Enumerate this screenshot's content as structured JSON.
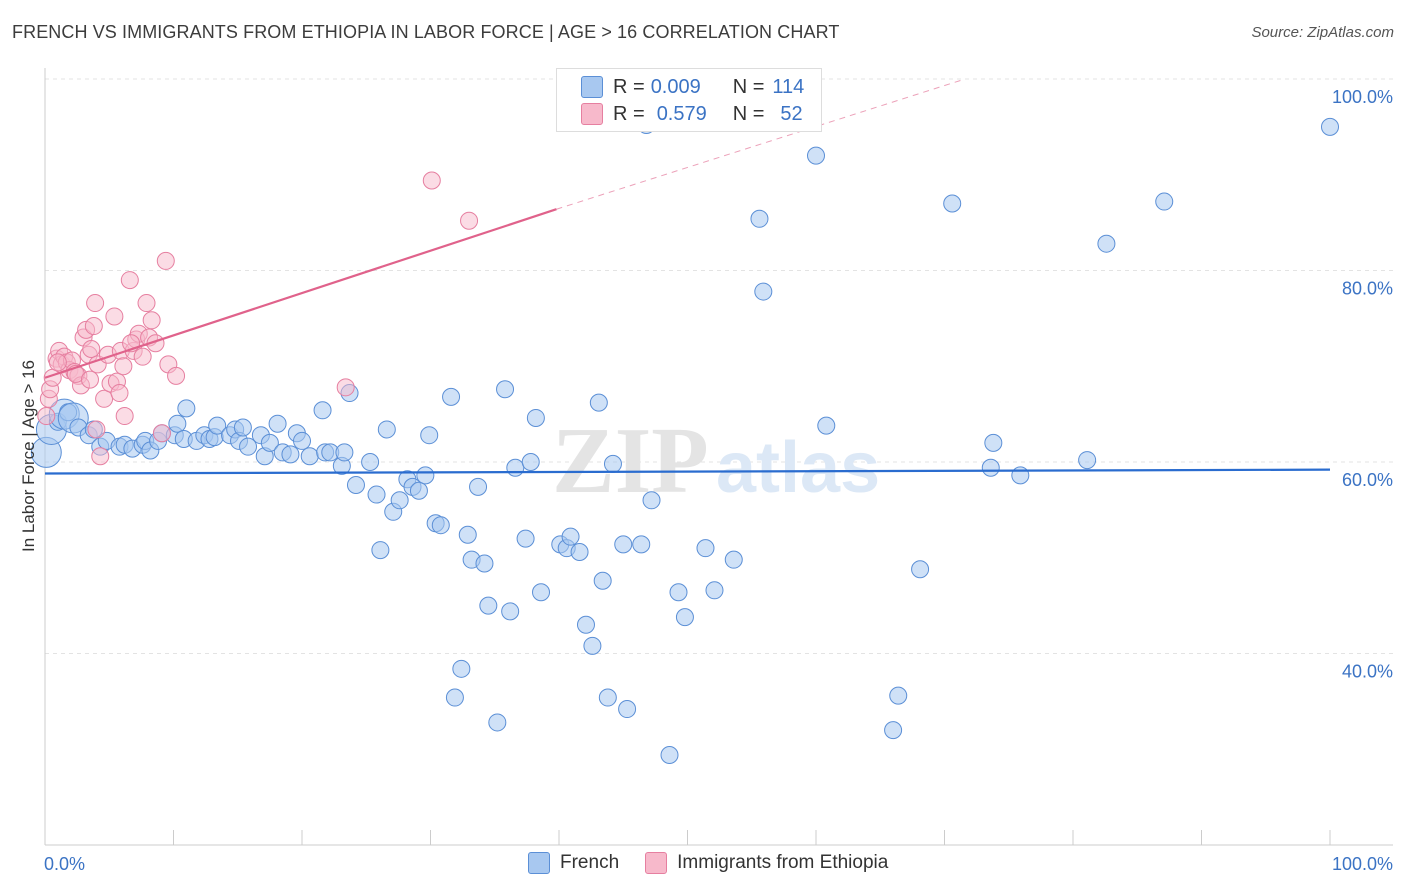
{
  "header": {
    "title": "FRENCH VS IMMIGRANTS FROM ETHIOPIA IN LABOR FORCE | AGE > 16 CORRELATION CHART",
    "source": "Source: ZipAtlas.com"
  },
  "watermark": {
    "zip": "ZIP",
    "atlas": "atlas"
  },
  "legend_top": {
    "french": {
      "r_label": "R =",
      "r_value": "0.009",
      "n_label": "N =",
      "n_value": "114"
    },
    "ethiopia": {
      "r_label": "R =",
      "r_value": "0.579",
      "n_label": "N =",
      "n_value": "52"
    }
  },
  "legend_bottom": {
    "french": "French",
    "ethiopia": "Immigrants from Ethiopia"
  },
  "colors": {
    "french_fill": "#a8c8f0",
    "french_stroke": "#5b8fd6",
    "french_line": "#2a6ccf",
    "ethiopia_fill": "#f7b9cb",
    "ethiopia_stroke": "#e67fa0",
    "ethiopia_line": "#e0628b",
    "tick_text": "#3b73c4",
    "grid": "#e3e3e3"
  },
  "chart_data": {
    "type": "scatter",
    "title": "FRENCH VS IMMIGRANTS FROM ETHIOPIA IN LABOR FORCE | AGE > 16 CORRELATION CHART",
    "xlabel": "",
    "ylabel": "In Labor Force | Age > 16",
    "xlim": [
      0,
      100
    ],
    "ylim": [
      20,
      102
    ],
    "x_tick_labels": [
      "0.0%",
      "100.0%"
    ],
    "y_ticks": [
      40,
      60,
      80,
      100
    ],
    "y_tick_labels": [
      "40.0%",
      "60.0%",
      "80.0%",
      "100.0%"
    ],
    "legend_position": "top-center",
    "series": [
      {
        "name": "French",
        "r": 0.009,
        "n": 114,
        "trend": {
          "x0": 0,
          "y0": 58.8,
          "x1": 100,
          "y1": 59.2
        },
        "points": [
          [
            0.1,
            61.0
          ],
          [
            0.5,
            63.4
          ],
          [
            1.0,
            64.2
          ],
          [
            1.5,
            65.0
          ],
          [
            1.8,
            65.2
          ],
          [
            2.2,
            64.6
          ],
          [
            2.6,
            63.6
          ],
          [
            3.4,
            62.8
          ],
          [
            3.8,
            63.4
          ],
          [
            4.3,
            61.6
          ],
          [
            4.8,
            62.2
          ],
          [
            5.8,
            61.6
          ],
          [
            6.2,
            61.8
          ],
          [
            6.8,
            61.4
          ],
          [
            7.6,
            61.8
          ],
          [
            7.8,
            62.2
          ],
          [
            8.2,
            61.2
          ],
          [
            8.8,
            62.2
          ],
          [
            9.1,
            63.0
          ],
          [
            10.1,
            62.8
          ],
          [
            10.3,
            64.0
          ],
          [
            10.8,
            62.4
          ],
          [
            11.0,
            65.6
          ],
          [
            11.8,
            62.2
          ],
          [
            12.4,
            62.8
          ],
          [
            12.8,
            62.4
          ],
          [
            13.2,
            62.6
          ],
          [
            13.4,
            63.8
          ],
          [
            14.4,
            62.8
          ],
          [
            14.8,
            63.4
          ],
          [
            15.1,
            62.2
          ],
          [
            15.4,
            63.6
          ],
          [
            15.8,
            61.6
          ],
          [
            16.8,
            62.8
          ],
          [
            17.1,
            60.6
          ],
          [
            17.5,
            62.0
          ],
          [
            18.1,
            64.0
          ],
          [
            18.5,
            61.0
          ],
          [
            19.1,
            60.8
          ],
          [
            19.6,
            63.0
          ],
          [
            20.0,
            62.2
          ],
          [
            20.6,
            60.6
          ],
          [
            21.6,
            65.4
          ],
          [
            21.8,
            61.0
          ],
          [
            22.2,
            61.0
          ],
          [
            23.1,
            59.6
          ],
          [
            23.3,
            61.0
          ],
          [
            23.7,
            67.2
          ],
          [
            24.2,
            57.6
          ],
          [
            25.3,
            60.0
          ],
          [
            25.8,
            56.6
          ],
          [
            26.1,
            50.8
          ],
          [
            26.6,
            63.4
          ],
          [
            27.1,
            54.8
          ],
          [
            27.6,
            56.0
          ],
          [
            28.2,
            58.2
          ],
          [
            28.6,
            57.4
          ],
          [
            29.1,
            57.0
          ],
          [
            29.6,
            58.6
          ],
          [
            29.9,
            62.8
          ],
          [
            30.4,
            53.6
          ],
          [
            30.8,
            53.4
          ],
          [
            31.6,
            66.8
          ],
          [
            31.9,
            35.4
          ],
          [
            32.4,
            38.4
          ],
          [
            32.9,
            52.4
          ],
          [
            33.2,
            49.8
          ],
          [
            33.7,
            57.4
          ],
          [
            34.2,
            49.4
          ],
          [
            34.5,
            45.0
          ],
          [
            35.2,
            32.8
          ],
          [
            35.8,
            67.6
          ],
          [
            36.2,
            44.4
          ],
          [
            36.6,
            59.4
          ],
          [
            37.4,
            52.0
          ],
          [
            37.8,
            60.0
          ],
          [
            38.2,
            64.6
          ],
          [
            38.6,
            46.4
          ],
          [
            40.1,
            51.4
          ],
          [
            40.6,
            51.0
          ],
          [
            40.9,
            52.2
          ],
          [
            41.6,
            50.6
          ],
          [
            42.1,
            43.0
          ],
          [
            42.6,
            40.8
          ],
          [
            43.1,
            66.2
          ],
          [
            43.4,
            47.6
          ],
          [
            43.8,
            35.4
          ],
          [
            44.2,
            59.8
          ],
          [
            45.0,
            51.4
          ],
          [
            45.3,
            34.2
          ],
          [
            46.4,
            51.4
          ],
          [
            46.8,
            95.2
          ],
          [
            47.2,
            56.0
          ],
          [
            48.6,
            29.4
          ],
          [
            49.3,
            46.4
          ],
          [
            49.8,
            43.8
          ],
          [
            51.4,
            51.0
          ],
          [
            52.1,
            46.6
          ],
          [
            53.6,
            49.8
          ],
          [
            55.6,
            85.4
          ],
          [
            55.9,
            77.8
          ],
          [
            60.0,
            92.0
          ],
          [
            60.8,
            63.8
          ],
          [
            66.0,
            32.0
          ],
          [
            66.4,
            35.6
          ],
          [
            68.1,
            48.8
          ],
          [
            70.6,
            87.0
          ],
          [
            73.6,
            59.4
          ],
          [
            73.8,
            62.0
          ],
          [
            75.9,
            58.6
          ],
          [
            81.1,
            60.2
          ],
          [
            82.6,
            82.8
          ],
          [
            87.1,
            87.2
          ],
          [
            100.0,
            95.0
          ]
        ],
        "point_sizes": {
          "big": [
            [
              0.1,
              61.0
            ],
            [
              0.5,
              63.4
            ],
            [
              1.5,
              65.0
            ],
            [
              2.2,
              64.6
            ]
          ]
        }
      },
      {
        "name": "Immigrants from Ethiopia",
        "r": 0.579,
        "n": 52,
        "trend": {
          "x0": 0,
          "y0": 68.8,
          "x1": 39.8,
          "y1": 86.4,
          "dashed_to": {
            "x": 71.6,
            "y": 100
          }
        },
        "points": [
          [
            0.1,
            64.8
          ],
          [
            0.3,
            66.6
          ],
          [
            0.4,
            67.6
          ],
          [
            0.6,
            68.8
          ],
          [
            0.9,
            70.8
          ],
          [
            1.1,
            71.6
          ],
          [
            1.3,
            70.2
          ],
          [
            1.5,
            71.0
          ],
          [
            1.7,
            70.4
          ],
          [
            1.9,
            69.6
          ],
          [
            2.1,
            70.6
          ],
          [
            2.3,
            69.4
          ],
          [
            2.6,
            69.0
          ],
          [
            2.8,
            68.0
          ],
          [
            3.0,
            73.0
          ],
          [
            3.2,
            73.8
          ],
          [
            3.4,
            71.2
          ],
          [
            3.6,
            71.8
          ],
          [
            3.8,
            74.2
          ],
          [
            3.9,
            76.6
          ],
          [
            4.1,
            70.2
          ],
          [
            4.3,
            60.6
          ],
          [
            4.6,
            66.6
          ],
          [
            4.9,
            71.2
          ],
          [
            5.1,
            68.2
          ],
          [
            5.4,
            75.2
          ],
          [
            5.6,
            68.4
          ],
          [
            5.8,
            67.2
          ],
          [
            5.9,
            71.6
          ],
          [
            6.1,
            70.0
          ],
          [
            6.2,
            64.8
          ],
          [
            6.6,
            79.0
          ],
          [
            6.9,
            71.6
          ],
          [
            7.1,
            72.8
          ],
          [
            7.3,
            73.4
          ],
          [
            7.6,
            71.0
          ],
          [
            7.9,
            76.6
          ],
          [
            8.1,
            73.0
          ],
          [
            8.3,
            74.8
          ],
          [
            8.6,
            72.4
          ],
          [
            9.1,
            63.0
          ],
          [
            9.4,
            81.0
          ],
          [
            9.6,
            70.2
          ],
          [
            10.2,
            69.0
          ],
          [
            23.4,
            67.8
          ],
          [
            30.1,
            89.4
          ],
          [
            33.0,
            85.2
          ],
          [
            2.4,
            69.2
          ],
          [
            1.0,
            70.4
          ],
          [
            3.5,
            68.6
          ],
          [
            6.7,
            72.4
          ],
          [
            4.0,
            63.4
          ]
        ]
      }
    ]
  }
}
